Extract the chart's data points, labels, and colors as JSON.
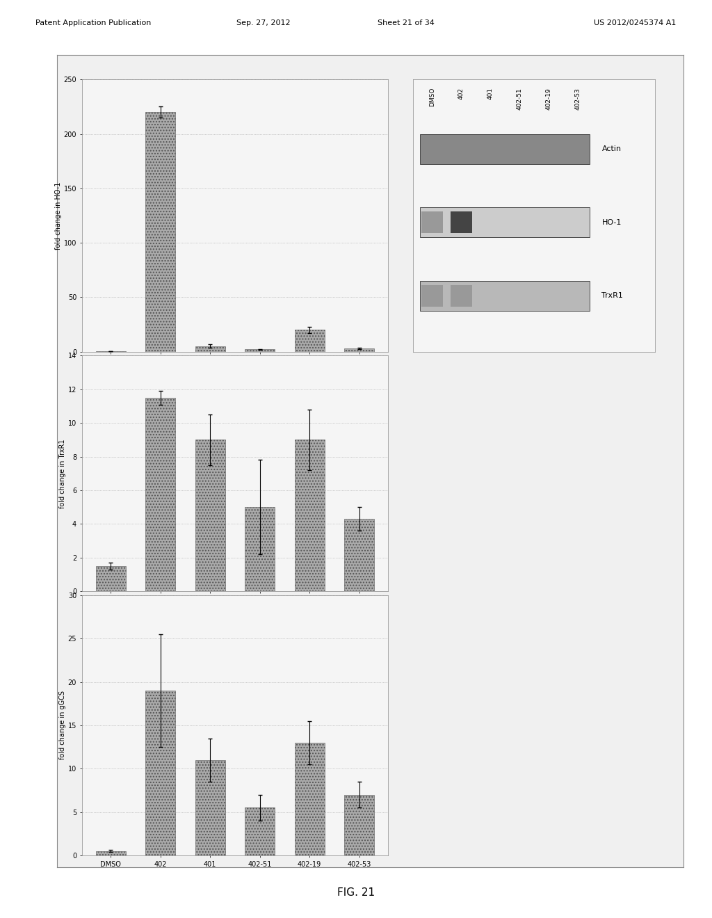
{
  "categories": [
    "DMSO",
    "402",
    "401",
    "402-51",
    "402-19",
    "402-53"
  ],
  "panel1": {
    "ylabel": "fold change in HO-1",
    "values": [
      0.5,
      220,
      5,
      2,
      20,
      3
    ],
    "errors": [
      0.1,
      5,
      1.5,
      0.5,
      3,
      0.8
    ],
    "ylim": [
      0,
      250
    ],
    "yticks": [
      0,
      50,
      100,
      150,
      200,
      250
    ]
  },
  "panel2": {
    "ylabel": "fold change in TrxR1",
    "values": [
      1.5,
      11.5,
      9.0,
      5.0,
      9.0,
      4.3
    ],
    "errors": [
      0.2,
      0.4,
      1.5,
      2.8,
      1.8,
      0.7
    ],
    "ylim": [
      0,
      14
    ],
    "yticks": [
      0,
      2,
      4,
      6,
      8,
      10,
      12,
      14
    ]
  },
  "panel3": {
    "ylabel": "fold change in gGCS",
    "values": [
      0.5,
      19,
      11,
      5.5,
      13,
      7
    ],
    "errors": [
      0.1,
      6.5,
      2.5,
      1.5,
      2.5,
      1.5
    ],
    "ylim": [
      0,
      30
    ],
    "yticks": [
      0,
      5,
      10,
      15,
      20,
      25,
      30
    ]
  },
  "bar_color": "#aaaaaa",
  "figure_bg": "#f0f0f0",
  "panel_bg": "#f5f5f5",
  "blot_labels": [
    "DMSO",
    "402",
    "401",
    "402-51",
    "402-19",
    "402-53"
  ],
  "blot_bands": [
    "Actin",
    "HO-1",
    "TrxR1"
  ],
  "header_parts": [
    "Patent Application Publication",
    "Sep. 27, 2012",
    "Sheet 21 of 34",
    "US 2012/0245374 A1"
  ],
  "fig_label": "FIG. 21"
}
